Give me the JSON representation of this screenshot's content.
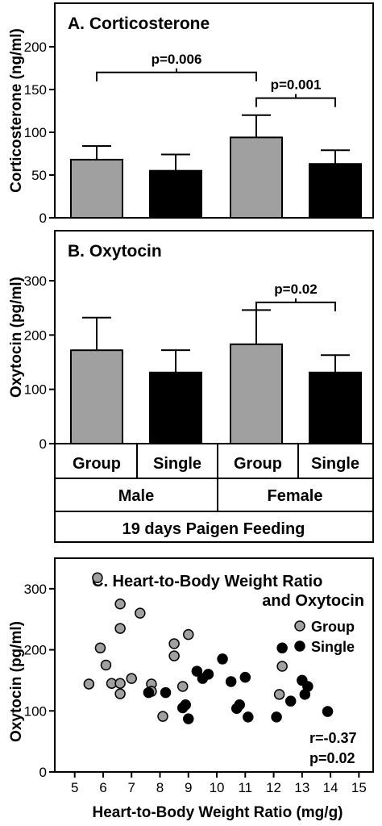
{
  "chart_data": [
    {
      "type": "bar",
      "title": "A. Corticosterone",
      "ylabel": "Corticosterone (ng/ml)",
      "ylim": [
        0,
        200
      ],
      "yticks": [
        "0",
        "50",
        "100",
        "150",
        "200"
      ],
      "categories": [
        "Male Group",
        "Male Single",
        "Female Group",
        "Female Single"
      ],
      "values": [
        68,
        55,
        94,
        63
      ],
      "errors": [
        16,
        19,
        26,
        16
      ],
      "bar_colors": [
        "#a0a0a0",
        "#000000",
        "#a0a0a0",
        "#000000"
      ],
      "annotations": [
        {
          "text": "p=0.006",
          "from": 0,
          "to": 2,
          "y": 170
        },
        {
          "text": "p=0.001",
          "from": 2,
          "to": 3,
          "y": 140
        }
      ]
    },
    {
      "type": "bar",
      "title": "B. Oxytocin",
      "ylabel": "Oxytocin (pg/ml)",
      "ylim": [
        0,
        300
      ],
      "yticks": [
        "0",
        "100",
        "200",
        "300"
      ],
      "categories": [
        "Male Group",
        "Male Single",
        "Female Group",
        "Female Single"
      ],
      "values": [
        172,
        131,
        183,
        131
      ],
      "errors": [
        60,
        41,
        63,
        32
      ],
      "bar_colors": [
        "#a0a0a0",
        "#000000",
        "#a0a0a0",
        "#000000"
      ],
      "annotations": [
        {
          "text": "p=0.02",
          "from": 2,
          "to": 3,
          "y": 260
        }
      ]
    },
    {
      "type": "scatter",
      "title_line1": "C. Heart-to-Body Weight Ratio",
      "title_line2": "and Oxytocin",
      "xlabel": "Heart-to-Body Weight Ratio (mg/g)",
      "ylabel": "Oxytocin (pg/ml)",
      "xlim": [
        4.3,
        15.5
      ],
      "ylim": [
        0,
        350
      ],
      "xticks": [
        "5",
        "6",
        "7",
        "8",
        "9",
        "10",
        "11",
        "12",
        "13",
        "14",
        "15"
      ],
      "yticks": [
        "0",
        "100",
        "200",
        "300"
      ],
      "legend_position": "top-right",
      "stats_r": "r=-0.37",
      "stats_p": "p=0.02",
      "series": [
        {
          "name": "Group",
          "color": "#a0a0a0",
          "points": [
            [
              5.8,
              318
            ],
            [
              6.6,
              275
            ],
            [
              7.3,
              260
            ],
            [
              6.6,
              235
            ],
            [
              9.0,
              225
            ],
            [
              8.5,
              210
            ],
            [
              5.9,
              203
            ],
            [
              8.5,
              190
            ],
            [
              6.1,
              175
            ],
            [
              12.3,
              173
            ],
            [
              7.0,
              153
            ],
            [
              6.3,
              145
            ],
            [
              6.6,
              145
            ],
            [
              5.5,
              144
            ],
            [
              7.7,
              144
            ],
            [
              8.8,
              140
            ],
            [
              7.7,
              132
            ],
            [
              6.6,
              128
            ],
            [
              12.2,
              127
            ],
            [
              8.1,
              91
            ]
          ]
        },
        {
          "name": "Single",
          "color": "#000000",
          "points": [
            [
              12.3,
              203
            ],
            [
              10.2,
              185
            ],
            [
              11.0,
              155
            ],
            [
              9.3,
              165
            ],
            [
              9.7,
              160
            ],
            [
              9.5,
              153
            ],
            [
              13.0,
              150
            ],
            [
              10.5,
              148
            ],
            [
              13.2,
              140
            ],
            [
              13.1,
              127
            ],
            [
              12.6,
              116
            ],
            [
              10.8,
              110
            ],
            [
              10.7,
              104
            ],
            [
              8.9,
              110
            ],
            [
              8.8,
              105
            ],
            [
              7.6,
              130
            ],
            [
              8.2,
              130
            ],
            [
              11.1,
              90
            ],
            [
              12.1,
              90
            ],
            [
              9.0,
              87
            ],
            [
              13.9,
              99
            ]
          ]
        }
      ]
    }
  ],
  "group_table": {
    "row1": [
      "Group",
      "Single",
      "Group",
      "Single"
    ],
    "row2": [
      "Male",
      "Female"
    ],
    "row3": "19 days Paigen Feeding"
  }
}
